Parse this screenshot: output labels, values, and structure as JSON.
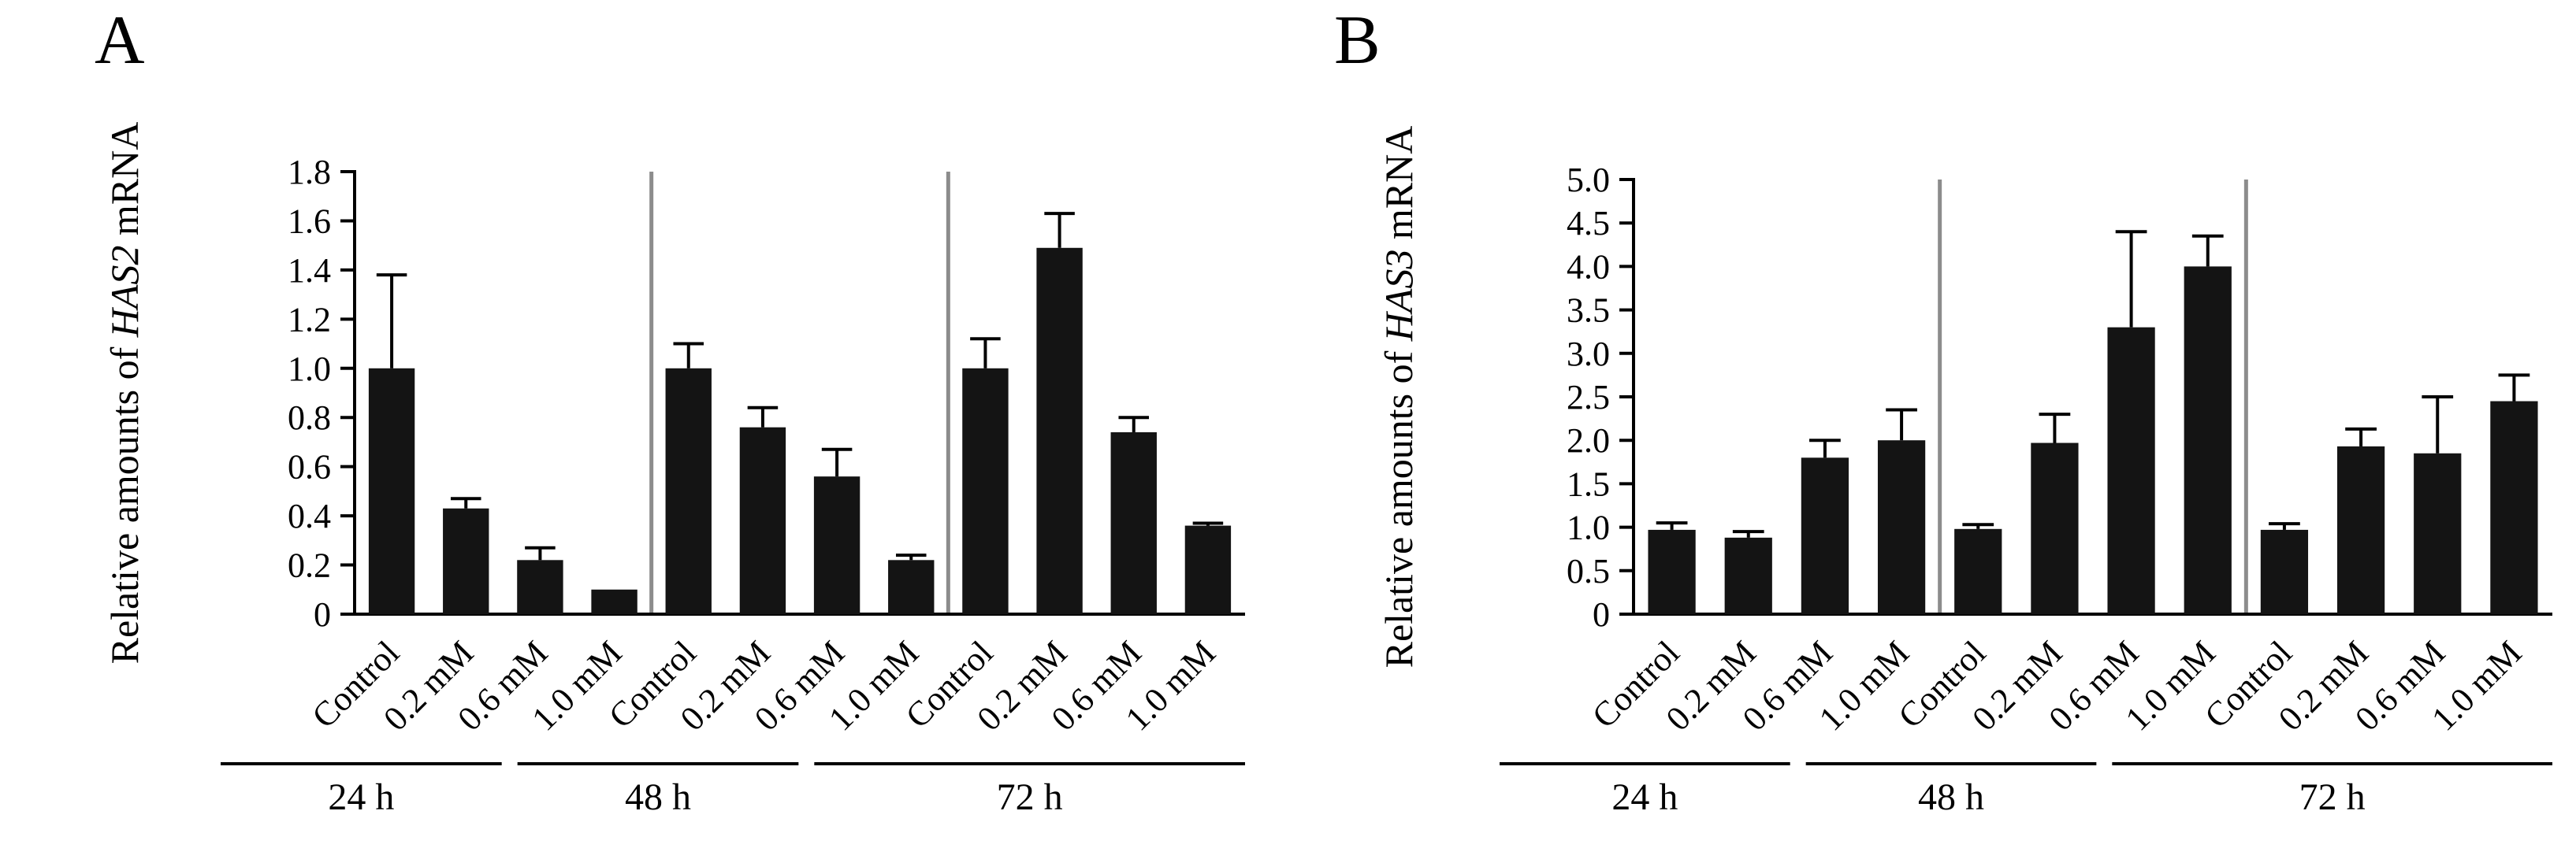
{
  "figure": {
    "panels": [
      {
        "letter": "A"
      },
      {
        "letter": "B"
      }
    ]
  },
  "chart_data": [
    {
      "type": "bar",
      "panel": "A",
      "title": "",
      "xlabel": "",
      "ylabel": "Relative amounts of HAS2 mRNA",
      "ylabel_parts": {
        "prefix": "Relative amounts of ",
        "italic": "HAS2",
        "suffix": " mRNA"
      },
      "groups": [
        "24 h",
        "48 h",
        "72 h"
      ],
      "categories": [
        "Control",
        "0.2 mM",
        "0.6 mM",
        "1.0 mM"
      ],
      "ylim": [
        0,
        1.8
      ],
      "yticks": [
        0,
        0.2,
        0.4,
        0.6,
        0.8,
        1.0,
        1.2,
        1.4,
        1.6,
        1.8
      ],
      "ytick_labels": [
        "0",
        "0.2",
        "0.4",
        "0.6",
        "0.8",
        "1.0",
        "1.2",
        "1.4",
        "1.6",
        "1.8"
      ],
      "grid": false,
      "legend": "none",
      "bar_color": "#141414",
      "separator_color": "#8c8c8c",
      "series": [
        {
          "group": "24 h",
          "values": [
            1.0,
            0.43,
            0.22,
            0.1
          ],
          "errors": [
            0.38,
            0.04,
            0.05,
            0.0
          ]
        },
        {
          "group": "48 h",
          "values": [
            1.0,
            0.76,
            0.56,
            0.22
          ],
          "errors": [
            0.1,
            0.08,
            0.11,
            0.02
          ]
        },
        {
          "group": "72 h",
          "values": [
            1.0,
            1.49,
            0.74,
            0.36
          ],
          "errors": [
            0.12,
            0.14,
            0.06,
            0.01
          ]
        }
      ]
    },
    {
      "type": "bar",
      "panel": "B",
      "title": "",
      "xlabel": "",
      "ylabel": "Relative amounts of HAS3 mRNA",
      "ylabel_parts": {
        "prefix": "Relative amounts of ",
        "italic": "HAS3",
        "suffix": " mRNA"
      },
      "groups": [
        "24 h",
        "48 h",
        "72 h"
      ],
      "categories": [
        "Control",
        "0.2 mM",
        "0.6 mM",
        "1.0 mM"
      ],
      "ylim": [
        0,
        5.0
      ],
      "yticks": [
        0,
        0.5,
        1.0,
        1.5,
        2.0,
        2.5,
        3.0,
        3.5,
        4.0,
        4.5,
        5.0
      ],
      "ytick_labels": [
        "0",
        "0.5",
        "1.0",
        "1.5",
        "2.0",
        "2.5",
        "3.0",
        "3.5",
        "4.0",
        "4.5",
        "5.0"
      ],
      "grid": false,
      "legend": "none",
      "bar_color": "#141414",
      "separator_color": "#8c8c8c",
      "series": [
        {
          "group": "24 h",
          "values": [
            0.97,
            0.88,
            1.8,
            2.0
          ],
          "errors": [
            0.08,
            0.07,
            0.2,
            0.35
          ]
        },
        {
          "group": "48 h",
          "values": [
            0.98,
            1.97,
            3.3,
            4.0
          ],
          "errors": [
            0.05,
            0.33,
            1.1,
            0.35
          ]
        },
        {
          "group": "72 h",
          "values": [
            0.97,
            1.93,
            1.85,
            2.45
          ],
          "errors": [
            0.07,
            0.2,
            0.65,
            0.3
          ]
        }
      ]
    }
  ]
}
